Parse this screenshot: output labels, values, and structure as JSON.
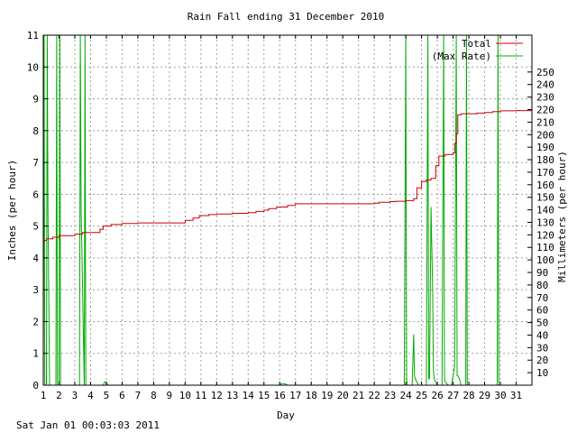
{
  "chart_data": {
    "type": "line",
    "title": "Rain Fall ending 31 December 2010",
    "xlabel": "Day",
    "ylabel_left": "Inches (per hour)",
    "ylabel_right": "Millimeters (per hour)",
    "xlim": [
      1,
      32
    ],
    "ylim_left": [
      0,
      11
    ],
    "ylim_right": [
      0,
      279.4
    ],
    "x_ticks": [
      "1",
      "2",
      "3",
      "4",
      "5",
      "6",
      "7",
      "8",
      "9",
      "10",
      "11",
      "12",
      "13",
      "14",
      "15",
      "16",
      "17",
      "18",
      "19",
      "20",
      "21",
      "22",
      "23",
      "24",
      "25",
      "26",
      "27",
      "28",
      "29",
      "30",
      "31"
    ],
    "y_ticks_left": [
      "0",
      "1",
      "2",
      "3",
      "4",
      "5",
      "6",
      "7",
      "8",
      "9",
      "10",
      "11"
    ],
    "y_ticks_right": [
      "10",
      "20",
      "30",
      "40",
      "50",
      "60",
      "70",
      "80",
      "90",
      "100",
      "110",
      "120",
      "130",
      "140",
      "150",
      "160",
      "170",
      "180",
      "190",
      "200",
      "210",
      "220",
      "230",
      "240",
      "250"
    ],
    "grid": true,
    "legend_position": "top-right",
    "timestamp": "Sat Jan 01 00:03:03 2011",
    "colors": {
      "total": "#cc0000",
      "max_rate": "#00aa00"
    },
    "series": [
      {
        "name": "Total",
        "step": true,
        "x": [
          1.0,
          1.2,
          1.6,
          2.0,
          3.0,
          3.5,
          4.6,
          4.8,
          5.3,
          6.0,
          7.0,
          8.0,
          9.0,
          10.0,
          10.5,
          10.9,
          11.5,
          12.0,
          13.0,
          14.0,
          14.5,
          15.0,
          15.3,
          15.8,
          16.5,
          17.0,
          18.0,
          19.0,
          20.0,
          21.0,
          22.0,
          22.3,
          23.0,
          23.4,
          24.0,
          24.5,
          24.7,
          25.0,
          25.3,
          25.6,
          25.9,
          26.1,
          26.5,
          27.0,
          27.1,
          27.2,
          27.3,
          27.5,
          28.0,
          28.5,
          29.0,
          29.5,
          30.0,
          31.0,
          32.0
        ],
        "y": [
          4.55,
          4.6,
          4.65,
          4.7,
          4.75,
          4.8,
          4.9,
          5.0,
          5.05,
          5.08,
          5.1,
          5.1,
          5.1,
          5.18,
          5.25,
          5.33,
          5.36,
          5.38,
          5.4,
          5.42,
          5.46,
          5.5,
          5.55,
          5.6,
          5.65,
          5.7,
          5.7,
          5.7,
          5.7,
          5.7,
          5.72,
          5.75,
          5.77,
          5.78,
          5.8,
          5.86,
          6.2,
          6.4,
          6.45,
          6.5,
          6.9,
          7.2,
          7.25,
          7.3,
          7.6,
          7.9,
          8.5,
          8.53,
          8.53,
          8.55,
          8.57,
          8.6,
          8.62,
          8.63,
          8.63
        ]
      },
      {
        "name": "(Max Rate)",
        "x": [
          1.0,
          1.05,
          1.1,
          1.2,
          1.25,
          1.3,
          1.4,
          1.8,
          1.85,
          1.9,
          2.0,
          2.05,
          2.1,
          2.8,
          3.3,
          3.35,
          3.4,
          3.6,
          3.65,
          3.7,
          3.8,
          4.8,
          4.9,
          5.0,
          5.1,
          6.0,
          16.0,
          16.1,
          16.3,
          16.5,
          23.5,
          23.9,
          24.0,
          24.05,
          24.1,
          24.4,
          24.5,
          24.55,
          24.6,
          24.7,
          24.8,
          25.0,
          25.3,
          25.4,
          25.45,
          25.5,
          25.6,
          25.7,
          25.75,
          25.8,
          25.9,
          26.0,
          26.3,
          26.4,
          26.45,
          26.5,
          26.6,
          26.7,
          26.9,
          27.0,
          27.1,
          27.2,
          27.25,
          27.3,
          27.4,
          27.5,
          27.8,
          27.85,
          27.9,
          28.0,
          29.0,
          29.8,
          29.85,
          29.9,
          30.0,
          31.0
        ],
        "y": [
          0,
          11,
          0,
          0,
          11,
          5.5,
          0,
          0,
          11,
          0,
          0,
          11,
          0,
          0,
          0,
          11,
          5.5,
          0,
          11,
          0,
          0,
          0,
          0.1,
          0.1,
          0,
          0,
          0,
          0.05,
          0.05,
          0,
          0,
          0,
          11,
          0.2,
          0,
          0,
          1.6,
          0.3,
          0.2,
          0.1,
          0,
          0,
          0,
          11,
          0.2,
          0.2,
          5.6,
          3.0,
          0.5,
          0.2,
          0.1,
          0,
          0,
          11,
          0.2,
          0.1,
          0.05,
          0,
          0,
          0.3,
          0.6,
          11,
          0.3,
          0.3,
          0.2,
          0,
          0,
          11,
          0,
          0,
          0,
          0,
          11,
          0,
          0,
          0
        ]
      }
    ]
  }
}
